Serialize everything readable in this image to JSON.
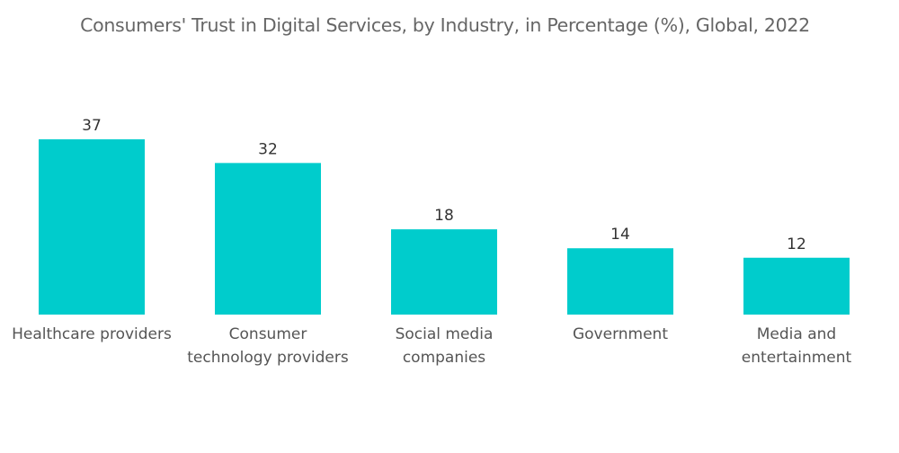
{
  "chart_data": {
    "type": "bar",
    "title": "Consumers' Trust in Digital Services, by Industry, in Percentage (%), Global, 2022",
    "categories": [
      [
        "Healthcare providers"
      ],
      [
        "Consumer",
        "technology providers"
      ],
      [
        "Social media",
        "companies"
      ],
      [
        "Government"
      ],
      [
        "Media and",
        "entertainment"
      ]
    ],
    "values": [
      37,
      32,
      18,
      14,
      12
    ],
    "data_labels": [
      "37",
      "32",
      "18",
      "14",
      "12"
    ],
    "xlabel": "",
    "ylabel": "",
    "ylim": [
      0,
      37
    ],
    "grid": false,
    "legend": "none",
    "bar_color": "#00CCCC"
  }
}
